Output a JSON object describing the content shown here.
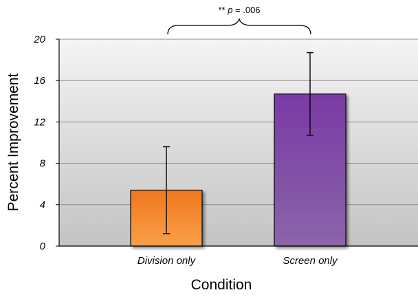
{
  "chart_data": {
    "type": "bar",
    "title": "",
    "xlabel": "Condition",
    "ylabel": "Percent Improvement",
    "categories": [
      "Division only",
      "Screen only"
    ],
    "values": [
      5.4,
      14.7
    ],
    "error_bars": [
      {
        "low": 1.2,
        "high": 9.6
      },
      {
        "low": 10.7,
        "high": 18.7
      }
    ],
    "ylim": [
      0,
      20
    ],
    "yticks": [
      0,
      4,
      8,
      12,
      16,
      20
    ],
    "grid": true,
    "colors": {
      "bars": [
        "#f0781e",
        "#7a3aa6"
      ],
      "bars_light": [
        "#f9a04a",
        "#8a64a8"
      ],
      "plot_bg_top": "#f4f4f4",
      "plot_bg_bottom": "#c4c4c4",
      "grid": "#8c8c8c"
    },
    "annotation": {
      "stars": "**",
      "p_symbol": "p",
      "rest": " = .006",
      "between": [
        0,
        1
      ]
    }
  }
}
